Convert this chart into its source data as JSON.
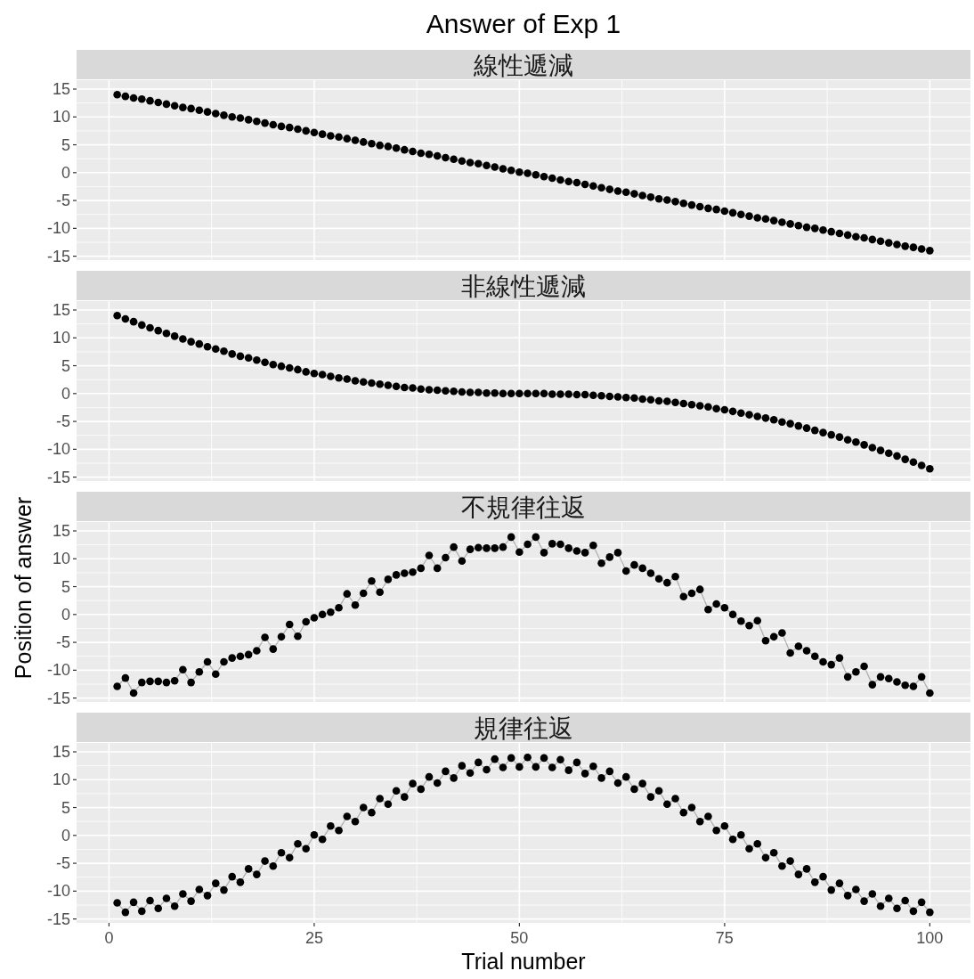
{
  "chart_data": [
    {
      "type": "line",
      "title": "Answer of Exp 1",
      "subtitle": "線性遞減",
      "marker": "circle",
      "grid": true,
      "tick_labels": "y",
      "xlim": [
        -3.95,
        104.95
      ],
      "ylim": [
        -15.7,
        16.6
      ],
      "xticks": [
        0,
        25,
        50,
        75,
        100
      ],
      "yticks": [
        -15,
        -10,
        -5,
        0,
        5,
        10,
        15
      ],
      "x": [
        1,
        2,
        3,
        4,
        5,
        6,
        7,
        8,
        9,
        10,
        11,
        12,
        13,
        14,
        15,
        16,
        17,
        18,
        19,
        20,
        21,
        22,
        23,
        24,
        25,
        26,
        27,
        28,
        29,
        30,
        31,
        32,
        33,
        34,
        35,
        36,
        37,
        38,
        39,
        40,
        41,
        42,
        43,
        44,
        45,
        46,
        47,
        48,
        49,
        50,
        51,
        52,
        53,
        54,
        55,
        56,
        57,
        58,
        59,
        60,
        61,
        62,
        63,
        64,
        65,
        66,
        67,
        68,
        69,
        70,
        71,
        72,
        73,
        74,
        75,
        76,
        77,
        78,
        79,
        80,
        81,
        82,
        83,
        84,
        85,
        86,
        87,
        88,
        89,
        90,
        91,
        92,
        93,
        94,
        95,
        96,
        97,
        98,
        99,
        100
      ],
      "series": [
        {
          "color": "#000000",
          "values": [
            14.0,
            13.7,
            13.4,
            13.2,
            12.9,
            12.6,
            12.3,
            12.0,
            11.7,
            11.5,
            11.2,
            10.9,
            10.6,
            10.3,
            10.0,
            9.8,
            9.5,
            9.2,
            8.9,
            8.6,
            8.3,
            8.1,
            7.8,
            7.5,
            7.2,
            6.9,
            6.6,
            6.4,
            6.1,
            5.8,
            5.5,
            5.2,
            4.9,
            4.7,
            4.4,
            4.1,
            3.8,
            3.5,
            3.3,
            3.0,
            2.7,
            2.4,
            2.1,
            1.8,
            1.6,
            1.3,
            1.0,
            0.7,
            0.4,
            0.1,
            -0.1,
            -0.4,
            -0.7,
            -1.0,
            -1.3,
            -1.6,
            -1.8,
            -2.1,
            -2.4,
            -2.7,
            -3.0,
            -3.3,
            -3.5,
            -3.8,
            -4.1,
            -4.4,
            -4.7,
            -4.9,
            -5.2,
            -5.5,
            -5.8,
            -6.1,
            -6.4,
            -6.6,
            -6.9,
            -7.2,
            -7.5,
            -7.8,
            -8.1,
            -8.3,
            -8.6,
            -8.9,
            -9.2,
            -9.5,
            -9.8,
            -10.0,
            -10.3,
            -10.6,
            -10.9,
            -11.2,
            -11.5,
            -11.7,
            -12.0,
            -12.3,
            -12.6,
            -12.9,
            -13.2,
            -13.4,
            -13.7,
            -14.0
          ]
        }
      ]
    },
    {
      "type": "line",
      "subtitle": "非線性遞減",
      "marker": "circle",
      "grid": true,
      "tick_labels": "y",
      "xlim": [
        -3.95,
        104.95
      ],
      "ylim": [
        -15.7,
        16.6
      ],
      "xticks": [
        0,
        25,
        50,
        75,
        100
      ],
      "yticks": [
        -15,
        -10,
        -5,
        0,
        5,
        10,
        15
      ],
      "x": [
        1,
        2,
        3,
        4,
        5,
        6,
        7,
        8,
        9,
        10,
        11,
        12,
        13,
        14,
        15,
        16,
        17,
        18,
        19,
        20,
        21,
        22,
        23,
        24,
        25,
        26,
        27,
        28,
        29,
        30,
        31,
        32,
        33,
        34,
        35,
        36,
        37,
        38,
        39,
        40,
        41,
        42,
        43,
        44,
        45,
        46,
        47,
        48,
        49,
        50,
        51,
        52,
        53,
        54,
        55,
        56,
        57,
        58,
        59,
        60,
        61,
        62,
        63,
        64,
        65,
        66,
        67,
        68,
        69,
        70,
        71,
        72,
        73,
        74,
        75,
        76,
        77,
        78,
        79,
        80,
        81,
        82,
        83,
        84,
        85,
        86,
        87,
        88,
        89,
        90,
        91,
        92,
        93,
        94,
        95,
        96,
        97,
        98,
        99,
        100
      ],
      "series": [
        {
          "color": "#000000",
          "values": [
            14.0,
            13.4,
            12.9,
            12.3,
            11.8,
            11.3,
            10.8,
            10.3,
            9.8,
            9.3,
            8.9,
            8.4,
            8.0,
            7.6,
            7.1,
            6.7,
            6.4,
            6.0,
            5.6,
            5.2,
            4.9,
            4.6,
            4.3,
            3.9,
            3.6,
            3.4,
            3.1,
            2.8,
            2.6,
            2.3,
            2.1,
            1.9,
            1.7,
            1.5,
            1.3,
            1.1,
            1.0,
            0.8,
            0.7,
            0.6,
            0.5,
            0.4,
            0.3,
            0.2,
            0.2,
            0.1,
            0.1,
            0,
            0,
            0,
            0,
            0,
            0,
            -0.1,
            -0.1,
            -0.1,
            -0.2,
            -0.2,
            -0.3,
            -0.4,
            -0.5,
            -0.6,
            -0.7,
            -0.8,
            -1.0,
            -1.1,
            -1.3,
            -1.4,
            -1.6,
            -1.8,
            -2.0,
            -2.2,
            -2.4,
            -2.7,
            -2.9,
            -3.2,
            -3.5,
            -3.8,
            -4.1,
            -4.4,
            -4.7,
            -5.1,
            -5.4,
            -5.8,
            -6.2,
            -6.6,
            -7.0,
            -7.4,
            -7.8,
            -8.3,
            -8.7,
            -9.2,
            -9.7,
            -10.2,
            -10.7,
            -11.2,
            -11.8,
            -12.3,
            -12.9,
            -13.5
          ]
        }
      ]
    },
    {
      "type": "line",
      "subtitle": "不規律往返",
      "ylabel": "Position of answer",
      "marker": "circle",
      "grid": true,
      "tick_labels": "y",
      "xlim": [
        -3.95,
        104.95
      ],
      "ylim": [
        -15.7,
        16.6
      ],
      "xticks": [
        0,
        25,
        50,
        75,
        100
      ],
      "yticks": [
        -15,
        -10,
        -5,
        0,
        5,
        10,
        15
      ],
      "x": [
        1,
        2,
        3,
        4,
        5,
        6,
        7,
        8,
        9,
        10,
        11,
        12,
        13,
        14,
        15,
        16,
        17,
        18,
        19,
        20,
        21,
        22,
        23,
        24,
        25,
        26,
        27,
        28,
        29,
        30,
        31,
        32,
        33,
        34,
        35,
        36,
        37,
        38,
        39,
        40,
        41,
        42,
        43,
        44,
        45,
        46,
        47,
        48,
        49,
        50,
        51,
        52,
        53,
        54,
        55,
        56,
        57,
        58,
        59,
        60,
        61,
        62,
        63,
        64,
        65,
        66,
        67,
        68,
        69,
        70,
        71,
        72,
        73,
        74,
        75,
        76,
        77,
        78,
        79,
        80,
        81,
        82,
        83,
        84,
        85,
        86,
        87,
        88,
        89,
        90,
        91,
        92,
        93,
        94,
        95,
        96,
        97,
        98,
        99,
        100
      ],
      "series": [
        {
          "color": "#000000",
          "values": [
            -12.9,
            -11.4,
            -14.1,
            -12.2,
            -12.0,
            -12.0,
            -12.2,
            -11.9,
            -9.9,
            -12.2,
            -10.3,
            -8.5,
            -10.7,
            -8.5,
            -7.8,
            -7.5,
            -7.2,
            -6.5,
            -4.1,
            -6.2,
            -4.0,
            -1.8,
            -3.9,
            -1.3,
            -0.6,
            0,
            0.4,
            1.2,
            3.7,
            1.7,
            3.8,
            6.0,
            4.0,
            6.3,
            7.1,
            7.4,
            7.6,
            8.3,
            10.6,
            8.3,
            10.2,
            12.1,
            9.6,
            11.7,
            12.0,
            11.9,
            11.9,
            12.1,
            13.9,
            11.2,
            12.6,
            13.9,
            11.1,
            12.7,
            12.6,
            11.9,
            11.4,
            11.1,
            12.4,
            9.2,
            10.3,
            11.1,
            7.8,
            8.9,
            8.3,
            7.4,
            6.4,
            5.7,
            6.8,
            3.2,
            3.8,
            4.5,
            0.9,
            1.9,
            1.2,
            0,
            -1.2,
            -2.0,
            -1.1,
            -4.7,
            -4.0,
            -3.3,
            -6.9,
            -5.7,
            -6.5,
            -7.5,
            -8.5,
            -9.0,
            -7.8,
            -11.2,
            -10.3,
            -9.3,
            -12.6,
            -11.2,
            -11.5,
            -12.1,
            -12.7,
            -12.9,
            -11.2,
            -14.1
          ]
        }
      ]
    },
    {
      "type": "line",
      "subtitle": "規律往返",
      "xlabel": "Trial number",
      "marker": "circle",
      "grid": true,
      "xlim": [
        -3.95,
        104.95
      ],
      "ylim": [
        -15.7,
        16.6
      ],
      "xticks": [
        0,
        25,
        50,
        75,
        100
      ],
      "yticks": [
        -15,
        -10,
        -5,
        0,
        5,
        10,
        15
      ],
      "x": [
        1,
        2,
        3,
        4,
        5,
        6,
        7,
        8,
        9,
        10,
        11,
        12,
        13,
        14,
        15,
        16,
        17,
        18,
        19,
        20,
        21,
        22,
        23,
        24,
        25,
        26,
        27,
        28,
        29,
        30,
        31,
        32,
        33,
        34,
        35,
        36,
        37,
        38,
        39,
        40,
        41,
        42,
        43,
        44,
        45,
        46,
        47,
        48,
        49,
        50,
        51,
        52,
        53,
        54,
        55,
        56,
        57,
        58,
        59,
        60,
        61,
        62,
        63,
        64,
        65,
        66,
        67,
        68,
        69,
        70,
        71,
        72,
        73,
        74,
        75,
        76,
        77,
        78,
        79,
        80,
        81,
        82,
        83,
        84,
        85,
        86,
        87,
        88,
        89,
        90,
        91,
        92,
        93,
        94,
        95,
        96,
        97,
        98,
        99,
        100
      ],
      "series": [
        {
          "color": "#000000",
          "values": [
            -12.1,
            -13.8,
            -12.0,
            -13.6,
            -11.7,
            -13.1,
            -11.3,
            -12.7,
            -10.5,
            -11.8,
            -9.7,
            -10.8,
            -8.6,
            -9.8,
            -7.4,
            -8.4,
            -6.0,
            -7.0,
            -4.6,
            -5.5,
            -3.1,
            -4.0,
            -1.5,
            -2.4,
            0.1,
            -0.7,
            1.7,
            0.9,
            3.4,
            2.5,
            5.0,
            4.1,
            6.6,
            5.6,
            8.0,
            6.9,
            9.3,
            8.3,
            10.5,
            9.4,
            11.5,
            10.3,
            12.5,
            11.2,
            13.1,
            11.8,
            13.7,
            12.2,
            13.9,
            12.3,
            14.0,
            12.3,
            13.9,
            12.2,
            13.6,
            11.7,
            13.1,
            11.1,
            12.4,
            10.3,
            11.5,
            9.4,
            10.5,
            8.3,
            9.3,
            6.9,
            8.0,
            5.6,
            6.6,
            4.1,
            5.0,
            2.5,
            3.4,
            0.9,
            1.7,
            -0.7,
            0.1,
            -2.4,
            -1.5,
            -4.0,
            -3.1,
            -5.5,
            -4.6,
            -7.0,
            -6.0,
            -8.4,
            -7.4,
            -9.8,
            -8.6,
            -10.8,
            -9.7,
            -11.8,
            -10.5,
            -12.7,
            -11.3,
            -13.1,
            -11.7,
            -13.6,
            -12.0,
            -13.8
          ]
        }
      ]
    }
  ]
}
